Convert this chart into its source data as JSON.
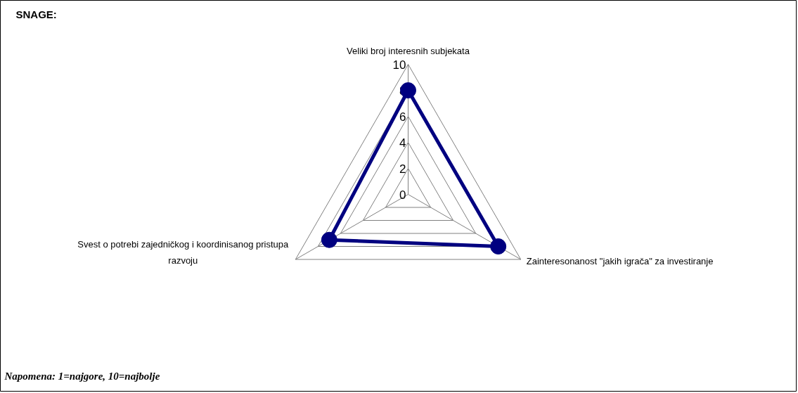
{
  "chart_data": {
    "type": "radar",
    "title": "SNAGE:",
    "categories": [
      "Veliki broj interesnih subjekata",
      "Zainteresonanost \"jakih igrača\" za investiranje",
      "Svest o potrebi zajedničkog i koordinisanog pristupa razvoju"
    ],
    "series": [
      {
        "color": "#000080",
        "values": [
          8,
          8,
          7
        ]
      }
    ],
    "ylim": [
      0,
      10
    ],
    "yticks": [
      0,
      2,
      4,
      6,
      8,
      10
    ],
    "grid": true,
    "marker": "circle",
    "line_style": "solid",
    "annotations": [
      "Napomena: 1=najgore, 10=najbolje"
    ]
  }
}
